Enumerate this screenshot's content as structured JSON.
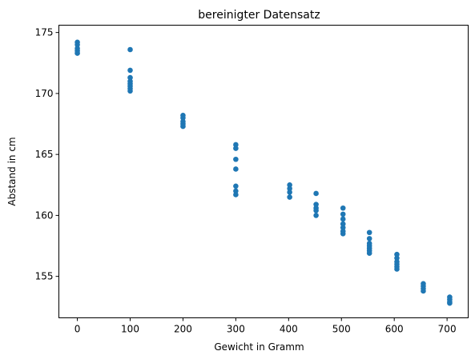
{
  "chart_data": {
    "type": "scatter",
    "title": "bereinigter Datensatz",
    "xlabel": "Gewicht in Gramm",
    "ylabel": "Abstand in cm",
    "xlim": [
      -35,
      740
    ],
    "ylim": [
      151.6,
      175.6
    ],
    "xticks": [
      0,
      100,
      200,
      300,
      400,
      500,
      600,
      700
    ],
    "yticks": [
      155,
      160,
      165,
      170,
      175
    ],
    "grid": false,
    "legend": "none",
    "color": "#1f77b4",
    "points": [
      {
        "x": 0,
        "y": 174.2
      },
      {
        "x": 0,
        "y": 174.0
      },
      {
        "x": 0,
        "y": 173.7
      },
      {
        "x": 0,
        "y": 173.5
      },
      {
        "x": 0,
        "y": 173.3
      },
      {
        "x": 100,
        "y": 173.6
      },
      {
        "x": 100,
        "y": 171.9
      },
      {
        "x": 100,
        "y": 171.3
      },
      {
        "x": 100,
        "y": 171.0
      },
      {
        "x": 100,
        "y": 170.8
      },
      {
        "x": 100,
        "y": 170.6
      },
      {
        "x": 100,
        "y": 170.4
      },
      {
        "x": 100,
        "y": 170.2
      },
      {
        "x": 200,
        "y": 168.2
      },
      {
        "x": 200,
        "y": 168.0
      },
      {
        "x": 200,
        "y": 167.7
      },
      {
        "x": 200,
        "y": 167.5
      },
      {
        "x": 200,
        "y": 167.3
      },
      {
        "x": 300,
        "y": 165.8
      },
      {
        "x": 300,
        "y": 165.5
      },
      {
        "x": 300,
        "y": 164.6
      },
      {
        "x": 300,
        "y": 163.8
      },
      {
        "x": 300,
        "y": 162.4
      },
      {
        "x": 300,
        "y": 162.0
      },
      {
        "x": 300,
        "y": 161.7
      },
      {
        "x": 402,
        "y": 162.5
      },
      {
        "x": 402,
        "y": 162.2
      },
      {
        "x": 402,
        "y": 161.9
      },
      {
        "x": 402,
        "y": 161.5
      },
      {
        "x": 452,
        "y": 161.8
      },
      {
        "x": 452,
        "y": 160.9
      },
      {
        "x": 452,
        "y": 160.6
      },
      {
        "x": 452,
        "y": 160.4
      },
      {
        "x": 452,
        "y": 160.0
      },
      {
        "x": 503,
        "y": 160.6
      },
      {
        "x": 503,
        "y": 160.1
      },
      {
        "x": 503,
        "y": 159.7
      },
      {
        "x": 503,
        "y": 159.3
      },
      {
        "x": 503,
        "y": 159.0
      },
      {
        "x": 503,
        "y": 158.7
      },
      {
        "x": 503,
        "y": 158.5
      },
      {
        "x": 553,
        "y": 158.6
      },
      {
        "x": 553,
        "y": 158.1
      },
      {
        "x": 553,
        "y": 157.7
      },
      {
        "x": 553,
        "y": 157.5
      },
      {
        "x": 553,
        "y": 157.3
      },
      {
        "x": 553,
        "y": 157.1
      },
      {
        "x": 553,
        "y": 156.9
      },
      {
        "x": 605,
        "y": 156.8
      },
      {
        "x": 605,
        "y": 156.5
      },
      {
        "x": 605,
        "y": 156.2
      },
      {
        "x": 605,
        "y": 156.0
      },
      {
        "x": 605,
        "y": 155.8
      },
      {
        "x": 605,
        "y": 155.6
      },
      {
        "x": 655,
        "y": 154.4
      },
      {
        "x": 655,
        "y": 154.2
      },
      {
        "x": 655,
        "y": 154.0
      },
      {
        "x": 655,
        "y": 153.8
      },
      {
        "x": 705,
        "y": 153.3
      },
      {
        "x": 705,
        "y": 153.1
      },
      {
        "x": 705,
        "y": 152.9
      },
      {
        "x": 705,
        "y": 152.8
      }
    ]
  }
}
